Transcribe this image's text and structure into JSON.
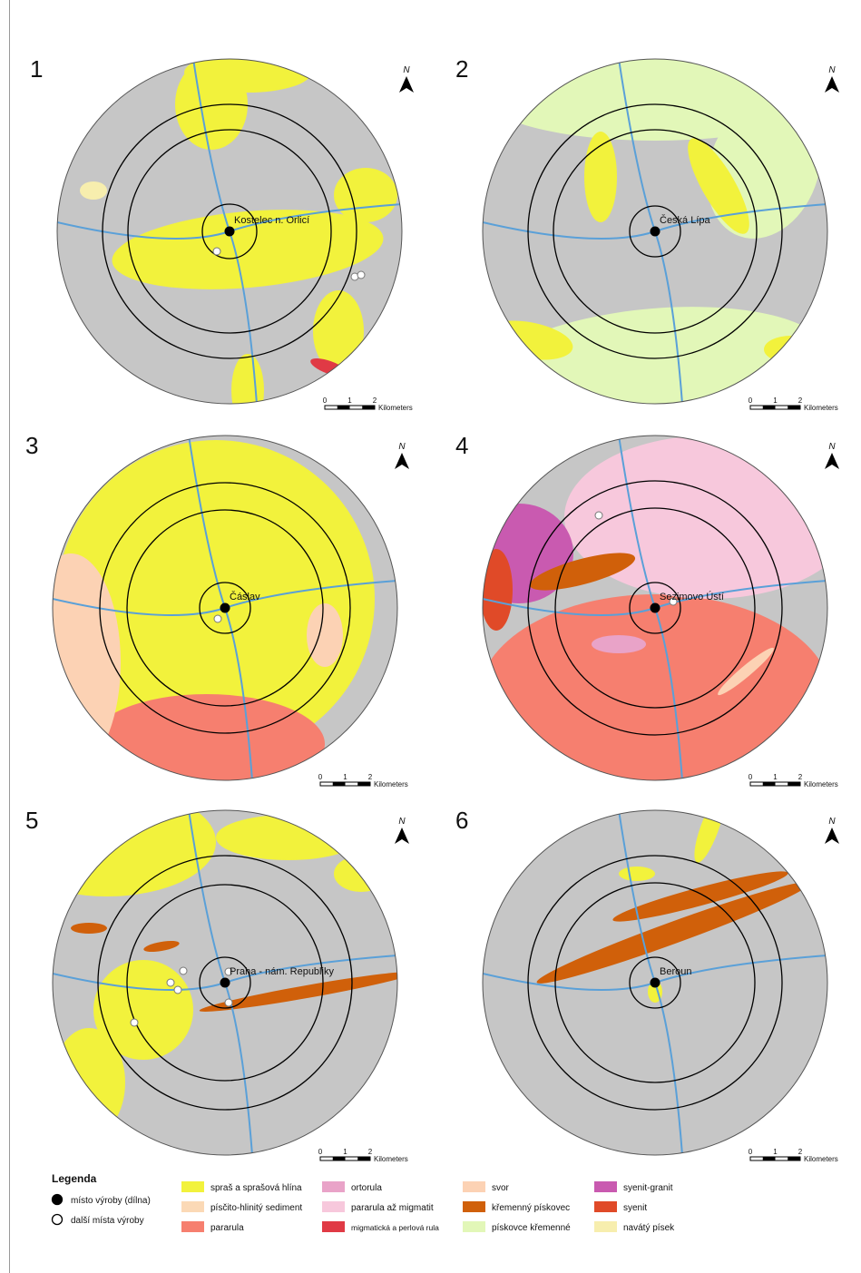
{
  "panels": [
    {
      "number": "1",
      "place": "Kostelec n. Orlicí",
      "north": "N",
      "scale": {
        "ticks": [
          "0",
          "1",
          "2"
        ],
        "unit": "Kilometers"
      }
    },
    {
      "number": "2",
      "place": "Česká Lípa",
      "north": "N",
      "scale": {
        "ticks": [
          "0",
          "1",
          "2"
        ],
        "unit": "Kilometers"
      }
    },
    {
      "number": "3",
      "place": "Čáslav",
      "north": "N",
      "scale": {
        "ticks": [
          "0",
          "1",
          "2"
        ],
        "unit": "Kilometers"
      }
    },
    {
      "number": "4",
      "place": "Sezimovo Ústí",
      "north": "N",
      "scale": {
        "ticks": [
          "0",
          "1",
          "2"
        ],
        "unit": "Kilometers"
      }
    },
    {
      "number": "5",
      "place": "Praha - nám. Republiky",
      "north": "N",
      "scale": {
        "ticks": [
          "0",
          "1",
          "2"
        ],
        "unit": "Kilometers"
      }
    },
    {
      "number": "6",
      "place": "Beroun",
      "north": "N",
      "scale": {
        "ticks": [
          "0",
          "1",
          "2"
        ],
        "unit": "Kilometers"
      }
    }
  ],
  "legend": {
    "title": "Legenda",
    "symbols": [
      {
        "label": "místo výroby (dílna)"
      },
      {
        "label": "další místa výroby"
      }
    ],
    "units": [
      {
        "label": "spraš a sprašová hlína",
        "color": "#f2f23c"
      },
      {
        "label": "písčito-hlinitý sediment",
        "color": "#fbd9b6"
      },
      {
        "label": "pararula",
        "color": "#f67f6f"
      },
      {
        "label": "ortorula",
        "color": "#e9a3c8"
      },
      {
        "label": "pararula až migmatit",
        "color": "#f7c8dc"
      },
      {
        "label": "migmatická a perlová rula",
        "color": "#e03a45"
      },
      {
        "label": "svor",
        "color": "#fcd2b4"
      },
      {
        "label": "křemenný pískovec",
        "color": "#d0600a"
      },
      {
        "label": "pískovce křemenné",
        "color": "#e2f7b8"
      },
      {
        "label": "syenit-granit",
        "color": "#c95ab0"
      },
      {
        "label": "syenit",
        "color": "#e04a28"
      },
      {
        "label": "navátý písek",
        "color": "#f7eeae"
      }
    ]
  }
}
